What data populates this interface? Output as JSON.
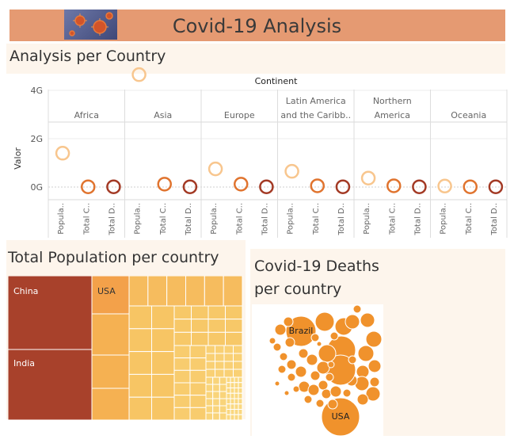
{
  "header": {
    "title": "Covid-19 Analysis",
    "image_icon": "virus-image",
    "color": "#e59a72"
  },
  "scatter": {
    "title": "Analysis per Country",
    "column_header": "Continent",
    "y_axis_label": "Valor",
    "y_ticks": [
      "4G",
      "2G",
      "0G"
    ],
    "measure_labels": [
      "Popula..",
      "Total C..",
      "Total D.."
    ],
    "continents": [
      {
        "label_lines": [
          "Africa"
        ],
        "values": [
          1.4,
          0.01,
          0.01
        ]
      },
      {
        "label_lines": [
          "Asia"
        ],
        "values": [
          4.65,
          0.12,
          0.01
        ]
      },
      {
        "label_lines": [
          "Europe"
        ],
        "values": [
          0.75,
          0.12,
          0.01
        ]
      },
      {
        "label_lines": [
          "Latin America",
          "and the Caribb.."
        ],
        "values": [
          0.65,
          0.05,
          0.01
        ]
      },
      {
        "label_lines": [
          "Northern",
          "America"
        ],
        "values": [
          0.37,
          0.05,
          0.01
        ]
      },
      {
        "label_lines": [
          "Oceania"
        ],
        "values": [
          0.04,
          0.01,
          0.01
        ]
      }
    ]
  },
  "treemap": {
    "title": "Total Population per country",
    "labels": [
      "China",
      "India",
      "USA"
    ]
  },
  "bubbles": {
    "title_lines": [
      "Covid-19 Deaths",
      "per country"
    ],
    "labels": [
      "Brazil",
      "USA"
    ]
  },
  "chart_data": [
    {
      "type": "scatter",
      "title": "Analysis per Country",
      "xlabel": "Continent",
      "ylabel": "Valor",
      "categories": [
        "Africa",
        "Asia",
        "Europe",
        "Latin America and the Caribb..",
        "Northern America",
        "Oceania"
      ],
      "measures": [
        "Popula..",
        "Total C..",
        "Total D.."
      ],
      "y_unit": "G",
      "ylim": [
        0,
        5
      ],
      "series": [
        {
          "name": "Popula..",
          "values": [
            1.4,
            4.65,
            0.75,
            0.65,
            0.37,
            0.04
          ]
        },
        {
          "name": "Total C..",
          "values": [
            0.01,
            0.12,
            0.12,
            0.05,
            0.05,
            0.01
          ]
        },
        {
          "name": "Total D..",
          "values": [
            0.01,
            0.01,
            0.01,
            0.01,
            0.01,
            0.01
          ]
        }
      ],
      "colors": [
        "#f8c68e",
        "#e0742f",
        "#a33a25"
      ]
    },
    {
      "type": "treemap",
      "title": "Total Population per country",
      "labels": [
        "China",
        "India",
        "USA"
      ],
      "colors": {
        "large": "#a8412b",
        "medium": "#f3a14a",
        "small": "#f7c564"
      }
    },
    {
      "type": "bubble",
      "title": "Covid-19 Deaths per country",
      "labels": [
        "Brazil",
        "USA"
      ],
      "color": "#f0922c"
    }
  ]
}
